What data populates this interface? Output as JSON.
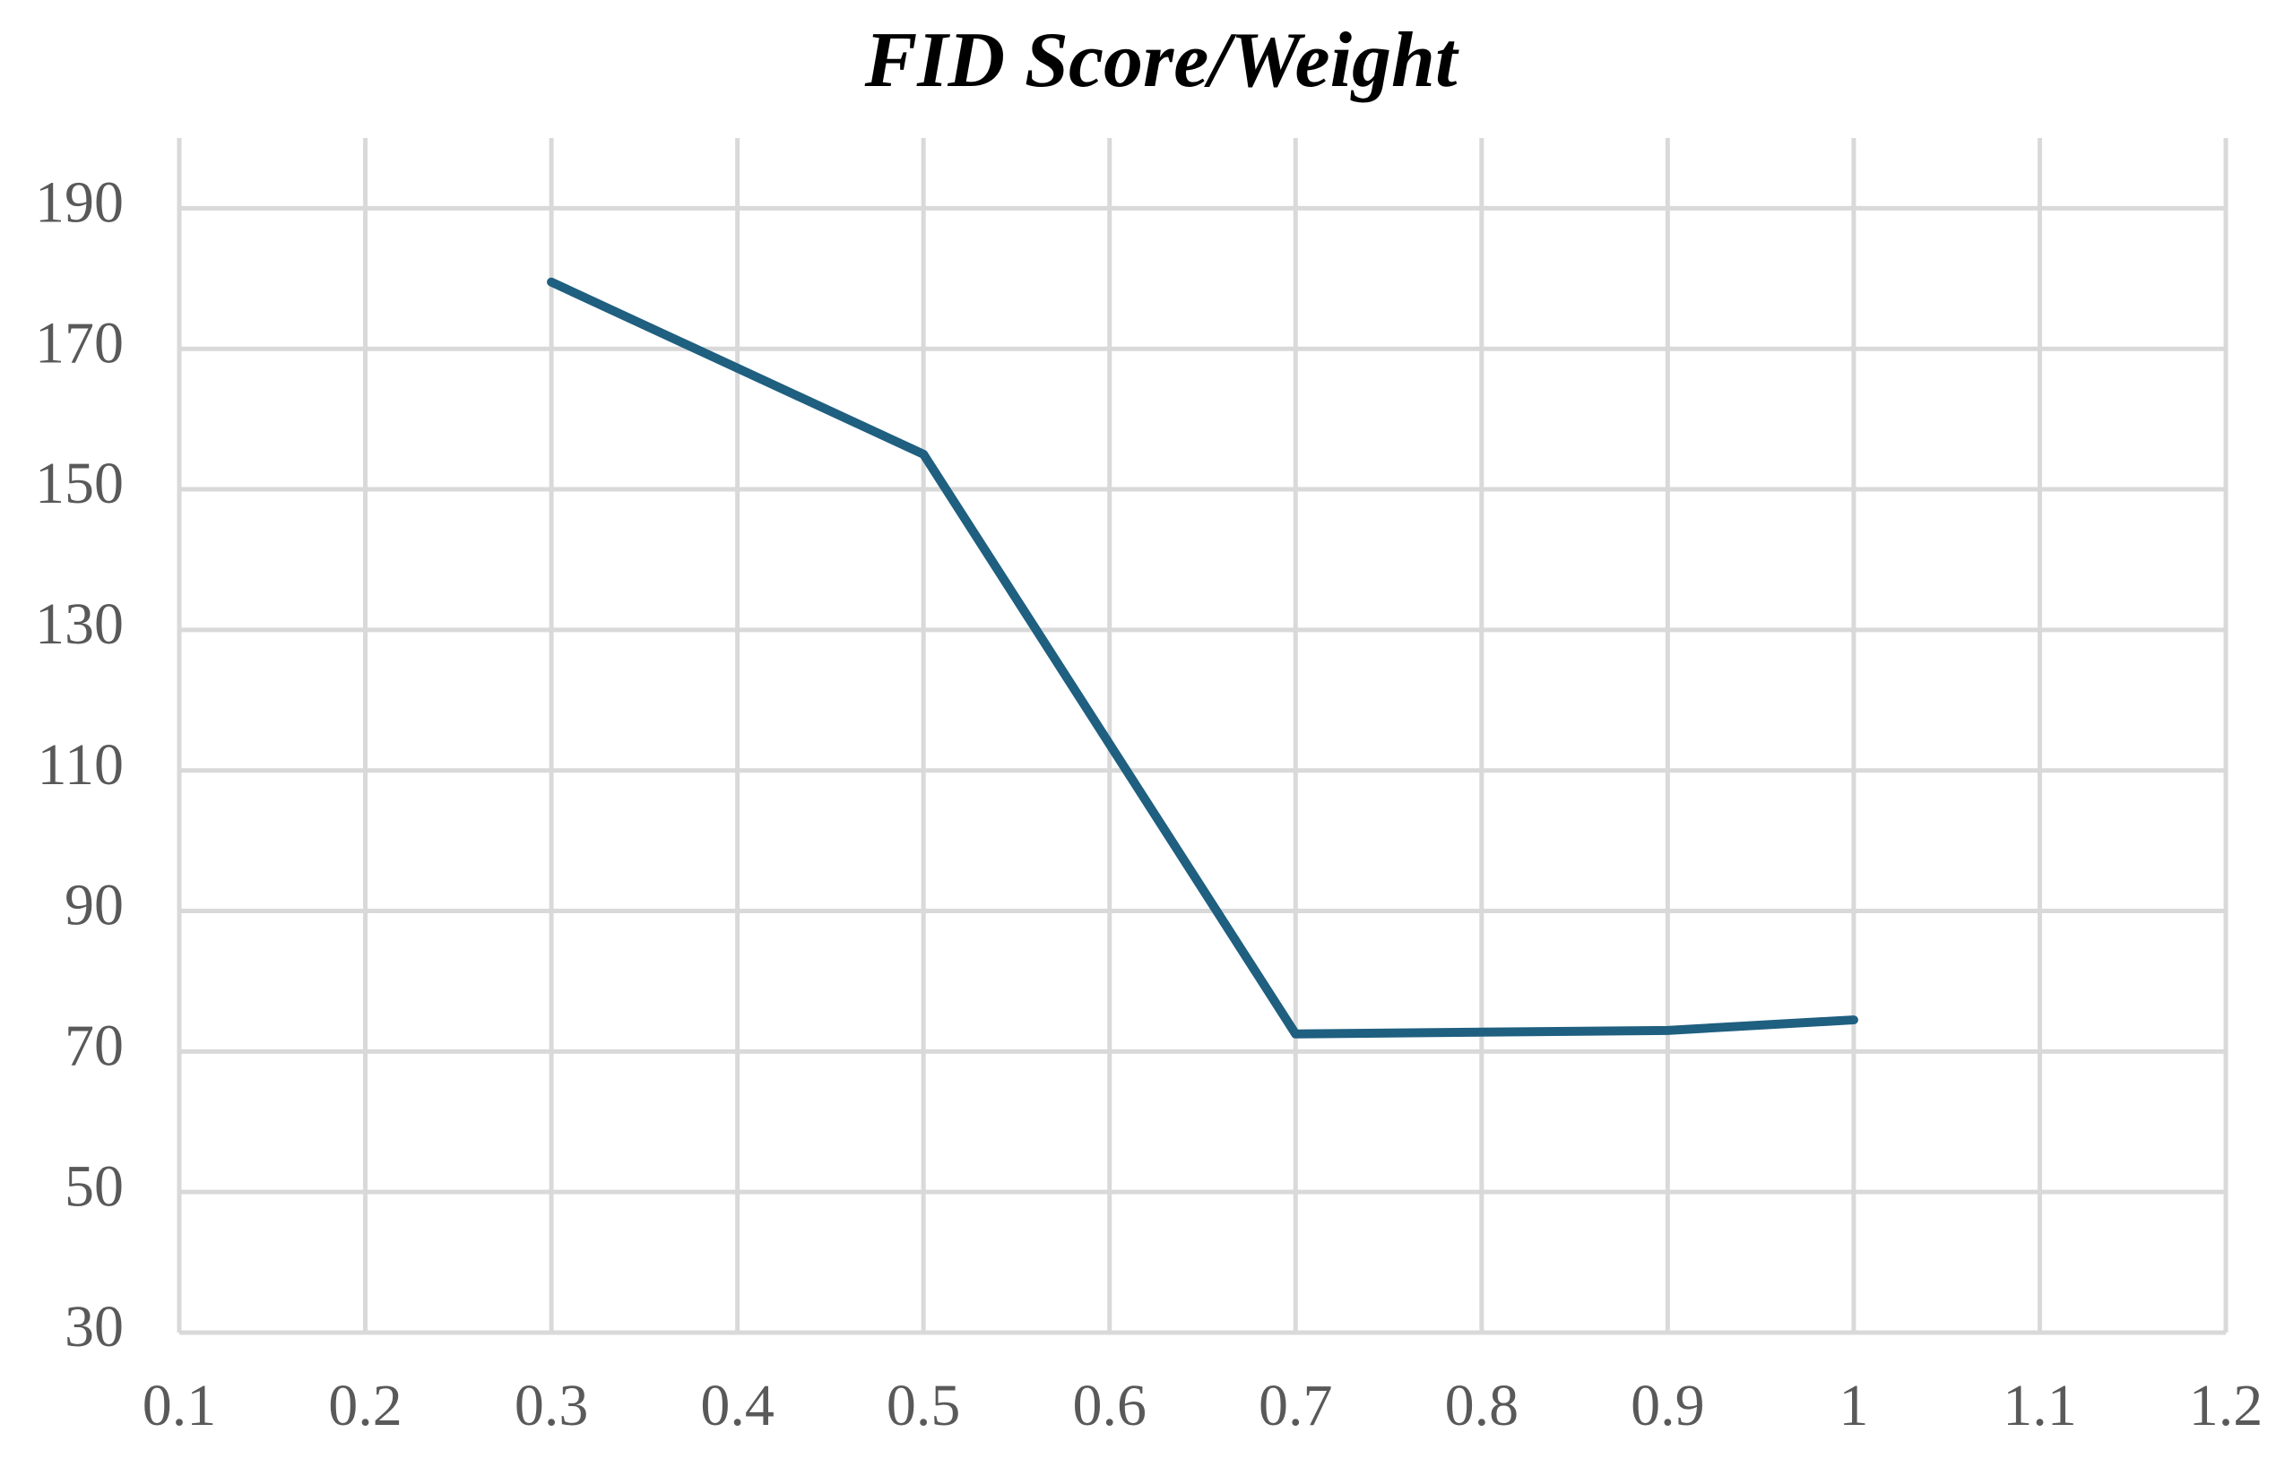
{
  "chart_data": {
    "type": "line",
    "title": "FID Score/Weight",
    "x": [
      0.3,
      0.5,
      0.7,
      0.9,
      1
    ],
    "series": [
      {
        "color": "#1f5f80",
        "values": [
          179.5,
          155,
          72.5,
          73,
          74.5
        ]
      }
    ],
    "xlim": [
      0.1,
      1.2
    ],
    "xticks": [
      0.1,
      0.2,
      0.3,
      0.4,
      0.5,
      0.6,
      0.7,
      0.8,
      0.9,
      1,
      1.1,
      1.2
    ],
    "ylim": [
      30,
      200
    ],
    "yticks": [
      30,
      50,
      70,
      90,
      110,
      130,
      150,
      170,
      190
    ],
    "grid": true
  }
}
